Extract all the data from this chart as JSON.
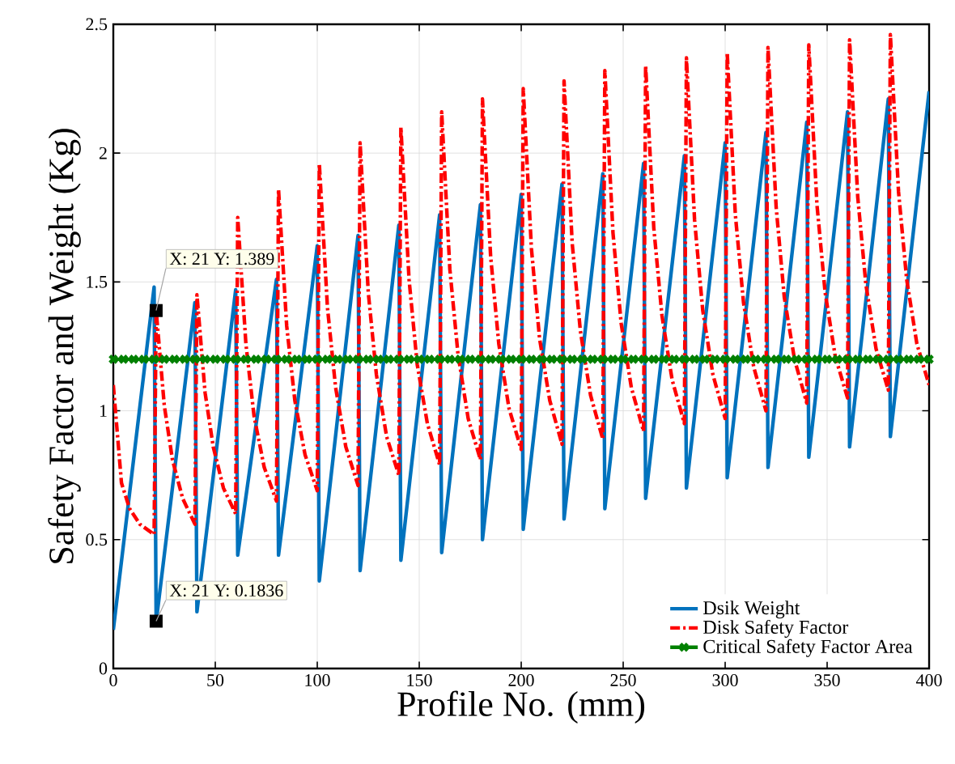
{
  "chart_data": {
    "type": "line",
    "xlabel": "Profile No. (mm)",
    "ylabel": "Safety Factor and Weight (Kg)",
    "xlim": [
      0,
      400
    ],
    "ylim": [
      0,
      2.5
    ],
    "xticks": [
      0,
      50,
      100,
      150,
      200,
      250,
      300,
      350,
      400
    ],
    "yticks": [
      0,
      0.5,
      1,
      1.5,
      2,
      2.5
    ],
    "grid": true,
    "legend": "bottom right",
    "series": [
      {
        "name": "Dsik Weight",
        "color": "#0072bd",
        "line_style": "solid",
        "marker": "none",
        "x": [
          0,
          20,
          21,
          40,
          41,
          60,
          61,
          80,
          81,
          100,
          101,
          120,
          121,
          140,
          141,
          160,
          161,
          180,
          181,
          200,
          201,
          220,
          221,
          240,
          241,
          260,
          261,
          280,
          281,
          300,
          301,
          320,
          321,
          340,
          341,
          360,
          361,
          380,
          381,
          400
        ],
        "values": [
          0.15,
          1.48,
          0.18,
          1.42,
          0.22,
          1.47,
          0.44,
          1.51,
          0.44,
          1.64,
          0.34,
          1.68,
          0.38,
          1.72,
          0.42,
          1.76,
          0.45,
          1.8,
          0.5,
          1.84,
          0.54,
          1.88,
          0.58,
          1.92,
          0.62,
          1.96,
          0.66,
          1.99,
          0.7,
          2.04,
          0.74,
          2.08,
          0.78,
          2.12,
          0.82,
          2.16,
          0.86,
          2.21,
          0.9,
          2.24
        ]
      },
      {
        "name": "Disk Safety Factor",
        "color": "#ff0000",
        "line_style": "dashdot",
        "marker": "none",
        "x": [
          0,
          4,
          8,
          13,
          20,
          21,
          25,
          29,
          34,
          40,
          41,
          45,
          49,
          54,
          60,
          61,
          65,
          69,
          74,
          80,
          81,
          85,
          89,
          94,
          100,
          101,
          105,
          109,
          114,
          120,
          121,
          125,
          129,
          134,
          140,
          141,
          145,
          149,
          154,
          160,
          161,
          165,
          169,
          174,
          180,
          181,
          185,
          189,
          194,
          200,
          201,
          205,
          209,
          214,
          220,
          221,
          225,
          229,
          234,
          240,
          241,
          245,
          249,
          254,
          260,
          261,
          265,
          269,
          274,
          280,
          281,
          285,
          289,
          294,
          300,
          301,
          305,
          309,
          314,
          320,
          321,
          325,
          329,
          334,
          340,
          341,
          345,
          349,
          354,
          360,
          361,
          365,
          369,
          374,
          380,
          381,
          385,
          389,
          394,
          400
        ],
        "values": [
          1.1,
          0.72,
          0.62,
          0.56,
          0.52,
          1.39,
          1.02,
          0.81,
          0.66,
          0.56,
          1.45,
          1.07,
          0.86,
          0.7,
          0.6,
          1.75,
          1.26,
          0.98,
          0.78,
          0.65,
          1.86,
          1.33,
          1.04,
          0.83,
          0.69,
          1.96,
          1.4,
          1.09,
          0.86,
          0.71,
          2.04,
          1.46,
          1.14,
          0.9,
          0.75,
          2.1,
          1.51,
          1.18,
          0.95,
          0.79,
          2.16,
          1.55,
          1.22,
          0.97,
          0.81,
          2.21,
          1.6,
          1.26,
          1.01,
          0.85,
          2.25,
          1.63,
          1.28,
          1.04,
          0.87,
          2.28,
          1.65,
          1.31,
          1.06,
          0.89,
          2.32,
          1.69,
          1.34,
          1.09,
          0.92,
          2.34,
          1.71,
          1.37,
          1.12,
          0.95,
          2.37,
          1.74,
          1.39,
          1.14,
          0.97,
          2.39,
          1.76,
          1.42,
          1.17,
          1.0,
          2.41,
          1.79,
          1.44,
          1.2,
          1.03,
          2.42,
          1.8,
          1.46,
          1.21,
          1.05,
          2.44,
          1.83,
          1.49,
          1.24,
          1.08,
          2.46,
          1.85,
          1.51,
          1.26,
          1.1
        ]
      },
      {
        "name": "Critical Safety Factor Area",
        "color": "#008000",
        "line_style": "solid",
        "marker": "cross",
        "x": [
          0,
          5,
          10,
          15,
          20,
          25,
          30,
          35,
          40,
          45,
          50,
          55,
          60,
          65,
          70,
          75,
          80,
          85,
          90,
          95,
          100,
          105,
          110,
          115,
          120,
          125,
          130,
          135,
          140,
          145,
          150,
          155,
          160,
          165,
          170,
          175,
          180,
          185,
          190,
          195,
          200,
          205,
          210,
          215,
          220,
          225,
          230,
          235,
          240,
          245,
          250,
          255,
          260,
          265,
          270,
          275,
          280,
          285,
          290,
          295,
          300,
          305,
          310,
          315,
          320,
          325,
          330,
          335,
          340,
          345,
          350,
          355,
          360,
          365,
          370,
          375,
          380,
          385,
          390,
          395,
          400
        ],
        "values": [
          1.2,
          1.2,
          1.2,
          1.2,
          1.2,
          1.2,
          1.2,
          1.2,
          1.2,
          1.2,
          1.2,
          1.2,
          1.2,
          1.2,
          1.2,
          1.2,
          1.2,
          1.2,
          1.2,
          1.2,
          1.2,
          1.2,
          1.2,
          1.2,
          1.2,
          1.2,
          1.2,
          1.2,
          1.2,
          1.2,
          1.2,
          1.2,
          1.2,
          1.2,
          1.2,
          1.2,
          1.2,
          1.2,
          1.2,
          1.2,
          1.2,
          1.2,
          1.2,
          1.2,
          1.2,
          1.2,
          1.2,
          1.2,
          1.2,
          1.2,
          1.2,
          1.2,
          1.2,
          1.2,
          1.2,
          1.2,
          1.2,
          1.2,
          1.2,
          1.2,
          1.2,
          1.2,
          1.2,
          1.2,
          1.2,
          1.2,
          1.2,
          1.2,
          1.2,
          1.2,
          1.2,
          1.2,
          1.2,
          1.2,
          1.2,
          1.2,
          1.2,
          1.2,
          1.2,
          1.2,
          1.2
        ]
      }
    ],
    "annotations": [
      {
        "text": "X: 21 Y: 1.389",
        "x": 21,
        "y": 1.389
      },
      {
        "text": "X: 21 Y: 0.1836",
        "x": 21,
        "y": 0.1836
      }
    ]
  }
}
